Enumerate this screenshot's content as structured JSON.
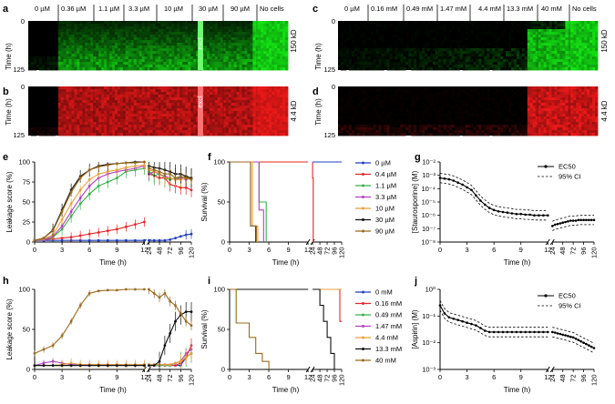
{
  "colors": {
    "c0": "#1f3fbf",
    "c1": "#e4262a",
    "c2": "#38b14a",
    "c3": "#b241c2",
    "c4": "#e8a13a",
    "c5": "#111111",
    "c6": "#9a6a1e",
    "green": "#19e019",
    "red": "#ee1b1b"
  },
  "panel_letters": [
    "a",
    "b",
    "c",
    "d",
    "e",
    "f",
    "g",
    "h",
    "i",
    "j"
  ],
  "heatmaps": {
    "a": {
      "header": [
        "0 µM",
        "0.36 µM",
        "1.1 µM",
        "3.3 µM",
        "10 µM",
        "30 µM",
        "90 µM",
        "No cells"
      ],
      "ylabel": "Time (h)",
      "ytick_top": "0",
      "ytick_bottom": "125",
      "right_label": "150 kD",
      "excl": "excl"
    },
    "b": {
      "ylabel": "Time (h)",
      "ytick_top": "0",
      "ytick_bottom": "125",
      "right_label": "4.4 kD",
      "excl": "excl"
    },
    "c": {
      "header": [
        "0 µM",
        "0.16 mM",
        "0.49 mM",
        "1.47 mM",
        "4.4 mM",
        "13.3 mM",
        "40 mM",
        "No cells"
      ],
      "ylabel": "Time (h)",
      "ytick_top": "0",
      "ytick_bottom": "125",
      "right_label": "150 kD"
    },
    "d": {
      "ylabel": "Time (h)",
      "ytick_top": "0",
      "ytick_bottom": "125",
      "right_label": "4.4 kD"
    }
  },
  "xticks": [
    "0",
    "3",
    "6",
    "9",
    "12",
    "24",
    "48",
    "72",
    "96",
    "120"
  ],
  "xlabel": "Time (h)",
  "chart_data": [
    {
      "panel": "e",
      "type": "line",
      "ylabel": "Leakage score (%)",
      "xlabel": "Time (h)",
      "ylim": [
        0,
        100
      ],
      "yticks": [
        "0",
        "25",
        "50",
        "75",
        "100"
      ],
      "x_early": [
        0,
        1,
        2,
        3,
        4,
        5,
        6,
        7,
        8,
        9,
        10,
        11,
        12
      ],
      "x_late": [
        24,
        36,
        48,
        60,
        72,
        84,
        96,
        108,
        120
      ],
      "series": [
        {
          "name": "0 µM",
          "early": [
            2,
            2,
            2,
            2,
            2,
            2,
            2,
            2,
            2,
            2,
            2,
            2,
            2
          ],
          "late": [
            2,
            2,
            2,
            2,
            3,
            5,
            7,
            9,
            10
          ]
        },
        {
          "name": "0.4 µM",
          "early": [
            2,
            3,
            4,
            5,
            6,
            8,
            10,
            12,
            14,
            16,
            19,
            22,
            25
          ],
          "late": [
            85,
            83,
            80,
            80,
            72,
            70,
            68,
            68,
            65
          ]
        },
        {
          "name": "1.1 µM",
          "early": [
            2,
            3,
            6,
            16,
            32,
            48,
            60,
            70,
            75,
            80,
            88,
            90,
            92
          ],
          "late": [
            88,
            83,
            85,
            80,
            78,
            80,
            80,
            82,
            80
          ]
        },
        {
          "name": "3.3 µM",
          "early": [
            2,
            3,
            7,
            20,
            38,
            55,
            70,
            80,
            85,
            88,
            90,
            92,
            95
          ],
          "late": [
            85,
            88,
            85,
            82,
            80,
            78,
            80,
            78,
            80
          ]
        },
        {
          "name": "10 µM",
          "early": [
            2,
            4,
            9,
            28,
            48,
            65,
            78,
            85,
            88,
            90,
            93,
            95,
            96
          ],
          "late": [
            90,
            88,
            86,
            80,
            80,
            78,
            78,
            80,
            80
          ]
        },
        {
          "name": "30 µM",
          "early": [
            2,
            5,
            15,
            40,
            65,
            82,
            90,
            95,
            97,
            98,
            99,
            100,
            100
          ],
          "late": [
            95,
            93,
            92,
            90,
            88,
            85,
            85,
            82,
            80
          ]
        },
        {
          "name": "90 µM",
          "early": [
            2,
            5,
            14,
            38,
            62,
            80,
            90,
            94,
            96,
            98,
            99,
            99,
            100
          ],
          "late": [
            92,
            90,
            88,
            85,
            85,
            80,
            82,
            80,
            78
          ]
        }
      ]
    },
    {
      "panel": "f",
      "type": "line",
      "ylabel": "Survival (%)",
      "xlabel": "Time (h)",
      "ylim": [
        0,
        100
      ],
      "yticks": [
        "0",
        "50",
        "100"
      ],
      "legend": [
        "0 µM",
        "0.4 µM",
        "1.1 µM",
        "3.3 µM",
        "10 µM",
        "30 µM",
        "90 µM"
      ],
      "series": [
        {
          "name": "0 µM",
          "steps": [
            [
              0,
              100
            ],
            [
              120,
              100
            ]
          ]
        },
        {
          "name": "0.4 µM",
          "steps": [
            [
              0,
              100
            ],
            [
              24,
              100
            ],
            [
              24,
              80
            ],
            [
              26,
              80
            ],
            [
              26,
              0
            ]
          ]
        },
        {
          "name": "1.1 µM",
          "steps": [
            [
              0,
              100
            ],
            [
              4.5,
              100
            ],
            [
              4.5,
              50
            ],
            [
              5.6,
              50
            ],
            [
              5.6,
              0
            ]
          ]
        },
        {
          "name": "3.3 µM",
          "steps": [
            [
              0,
              100
            ],
            [
              4.5,
              100
            ],
            [
              4.5,
              40
            ],
            [
              5.2,
              40
            ],
            [
              5.2,
              0
            ]
          ]
        },
        {
          "name": "10 µM",
          "steps": [
            [
              0,
              100
            ],
            [
              3.5,
              100
            ],
            [
              3.5,
              20
            ],
            [
              4.3,
              20
            ],
            [
              4.3,
              0
            ]
          ]
        },
        {
          "name": "30 µM",
          "steps": [
            [
              0,
              100
            ],
            [
              3.2,
              100
            ],
            [
              3.2,
              20
            ],
            [
              4,
              20
            ],
            [
              4,
              0
            ]
          ]
        },
        {
          "name": "90 µM",
          "steps": [
            [
              0,
              100
            ],
            [
              3.2,
              100
            ],
            [
              3.2,
              20
            ],
            [
              4.1,
              20
            ],
            [
              4.1,
              0
            ]
          ]
        }
      ]
    },
    {
      "panel": "g",
      "type": "line",
      "ylabel": "[Staurosporine] (M)",
      "xlabel": "Time (h)",
      "yscale": "log",
      "ylim_exp": [
        -8,
        -2
      ],
      "yticks": [
        "10⁻²",
        "10⁻³",
        "10⁻⁴",
        "10⁻⁵",
        "10⁻⁶",
        "10⁻⁷",
        "10⁻⁸"
      ],
      "legend": [
        "EC50",
        "95% CI"
      ],
      "x_early": [
        0,
        0.5,
        1,
        1.5,
        2,
        2.5,
        3,
        3.5,
        4,
        4.5,
        5,
        5.5,
        6,
        6.5,
        7,
        7.5,
        8,
        8.5,
        9,
        9.5,
        10,
        10.5,
        11,
        11.5,
        12
      ],
      "ec50_early_exp": [
        -3.2,
        -3.25,
        -3.3,
        -3.4,
        -3.55,
        -3.7,
        -3.9,
        -4.1,
        -4.5,
        -4.9,
        -5.2,
        -5.45,
        -5.6,
        -5.7,
        -5.75,
        -5.8,
        -5.85,
        -5.9,
        -5.9,
        -5.95,
        -5.95,
        -6,
        -6,
        -6,
        -6
      ],
      "x_late": [
        24,
        30,
        36,
        42,
        48,
        54,
        60,
        66,
        72,
        78,
        84,
        90,
        96,
        102,
        108,
        114,
        120
      ],
      "ec50_late_exp": [
        -6.8,
        -6.7,
        -6.65,
        -6.6,
        -6.55,
        -6.5,
        -6.45,
        -6.4,
        -6.4,
        -6.4,
        -6.35,
        -6.35,
        -6.35,
        -6.35,
        -6.35,
        -6.35,
        -6.35
      ],
      "ci_width_exp": 0.35
    },
    {
      "panel": "h",
      "type": "line",
      "ylabel": "Leakage score (%)",
      "xlabel": "Time (h)",
      "ylim": [
        0,
        100
      ],
      "yticks": [
        "0",
        "50",
        "100"
      ],
      "x_early": [
        0,
        1,
        2,
        3,
        4,
        5,
        6,
        7,
        8,
        9,
        10,
        11,
        12
      ],
      "x_late": [
        24,
        36,
        48,
        60,
        72,
        84,
        96,
        108,
        120
      ],
      "series": [
        {
          "name": "0 mM",
          "early": [
            5,
            5,
            5,
            5,
            5,
            5,
            5,
            5,
            5,
            5,
            5,
            5,
            5
          ],
          "late": [
            5,
            5,
            5,
            5,
            5,
            5,
            5,
            15,
            20
          ]
        },
        {
          "name": "0.16 mM",
          "early": [
            5,
            5,
            5,
            5,
            5,
            5,
            5,
            5,
            5,
            5,
            5,
            5,
            5
          ],
          "late": [
            5,
            5,
            5,
            5,
            5,
            5,
            8,
            15,
            30
          ]
        },
        {
          "name": "0.49 mM",
          "early": [
            5,
            5,
            5,
            5,
            5,
            5,
            5,
            5,
            5,
            5,
            5,
            5,
            5
          ],
          "late": [
            5,
            5,
            5,
            5,
            5,
            8,
            10,
            15,
            20
          ]
        },
        {
          "name": "1.47 mM",
          "early": [
            5,
            8,
            10,
            8,
            6,
            6,
            6,
            6,
            6,
            6,
            6,
            6,
            6
          ],
          "late": [
            6,
            6,
            6,
            6,
            6,
            8,
            10,
            20,
            25
          ]
        },
        {
          "name": "4.4 mM",
          "early": [
            5,
            5,
            5,
            6,
            8,
            6,
            6,
            6,
            6,
            6,
            6,
            6,
            6
          ],
          "late": [
            6,
            6,
            6,
            6,
            6,
            8,
            10,
            15,
            20
          ]
        },
        {
          "name": "13.3 mM",
          "early": [
            5,
            5,
            5,
            5,
            5,
            5,
            5,
            5,
            5,
            5,
            5,
            5,
            5
          ],
          "late": [
            5,
            5,
            10,
            30,
            45,
            60,
            68,
            72,
            72
          ]
        },
        {
          "name": "40 mM",
          "early": [
            20,
            25,
            30,
            42,
            60,
            80,
            95,
            98,
            99,
            99,
            100,
            100,
            100
          ],
          "late": [
            100,
            95,
            90,
            95,
            85,
            80,
            70,
            60,
            55
          ]
        }
      ]
    },
    {
      "panel": "i",
      "type": "line",
      "ylabel": "Survival (%)",
      "xlabel": "Time (h)",
      "ylim": [
        0,
        100
      ],
      "yticks": [
        "0",
        "50",
        "100"
      ],
      "legend": [
        "0 mM",
        "0.16 mM",
        "0.49 mM",
        "1.47 mM",
        "4.4 mM",
        "13.3 mM",
        "40 mM"
      ],
      "series": [
        {
          "name": "0 mM",
          "steps": [
            [
              0,
              100
            ],
            [
              120,
              100
            ]
          ]
        },
        {
          "name": "0.16 mM",
          "steps": [
            [
              0,
              100
            ],
            [
              114,
              100
            ],
            [
              114,
              60
            ],
            [
              120,
              60
            ]
          ]
        },
        {
          "name": "0.49 mM",
          "steps": [
            [
              0,
              100
            ],
            [
              120,
              100
            ]
          ]
        },
        {
          "name": "1.47 mM",
          "steps": [
            [
              0,
              100
            ],
            [
              120,
              100
            ]
          ]
        },
        {
          "name": "4.4 mM",
          "steps": [
            [
              0,
              100
            ],
            [
              120,
              100
            ]
          ]
        },
        {
          "name": "13.3 mM",
          "steps": [
            [
              0,
              100
            ],
            [
              48,
              100
            ],
            [
              48,
              80
            ],
            [
              60,
              80
            ],
            [
              60,
              60
            ],
            [
              72,
              60
            ],
            [
              72,
              40
            ],
            [
              84,
              40
            ],
            [
              84,
              20
            ],
            [
              96,
              20
            ],
            [
              96,
              0
            ],
            [
              120,
              0
            ]
          ]
        },
        {
          "name": "40 mM",
          "steps": [
            [
              0,
              100
            ],
            [
              1,
              100
            ],
            [
              1,
              58
            ],
            [
              3,
              58
            ],
            [
              3,
              40
            ],
            [
              4,
              40
            ],
            [
              4,
              20
            ],
            [
              5,
              20
            ],
            [
              5,
              10
            ],
            [
              6,
              10
            ],
            [
              6,
              0
            ]
          ]
        }
      ]
    },
    {
      "panel": "j",
      "type": "line",
      "ylabel": "[Aspirin] (M)",
      "xlabel": "Time (h)",
      "yscale": "log",
      "ylim_exp": [
        -3,
        0
      ],
      "yticks": [
        "10⁰",
        "10⁻¹",
        "10⁻²",
        "10⁻³"
      ],
      "legend": [
        "EC50",
        "95% CI"
      ],
      "x_early": [
        0,
        0.5,
        1,
        1.5,
        2,
        2.5,
        3,
        3.5,
        4,
        4.5,
        5,
        5.5,
        6,
        6.5,
        7,
        7.5,
        8,
        8.5,
        9,
        9.5,
        10,
        10.5,
        11,
        11.5,
        12
      ],
      "ec50_early_exp": [
        -0.6,
        -0.9,
        -1.05,
        -1.1,
        -1.15,
        -1.2,
        -1.25,
        -1.3,
        -1.35,
        -1.45,
        -1.55,
        -1.6,
        -1.6,
        -1.6,
        -1.6,
        -1.6,
        -1.6,
        -1.6,
        -1.6,
        -1.6,
        -1.6,
        -1.6,
        -1.6,
        -1.6,
        -1.6
      ],
      "x_late": [
        24,
        30,
        36,
        42,
        48,
        54,
        60,
        66,
        72,
        78,
        84,
        90,
        96,
        102,
        108,
        114,
        120
      ],
      "ec50_late_exp": [
        -1.6,
        -1.62,
        -1.65,
        -1.67,
        -1.7,
        -1.72,
        -1.75,
        -1.78,
        -1.8,
        -1.85,
        -1.9,
        -1.95,
        -2.0,
        -2.05,
        -2.1,
        -2.15,
        -2.2
      ],
      "ci_width_exp": 0.18
    }
  ]
}
